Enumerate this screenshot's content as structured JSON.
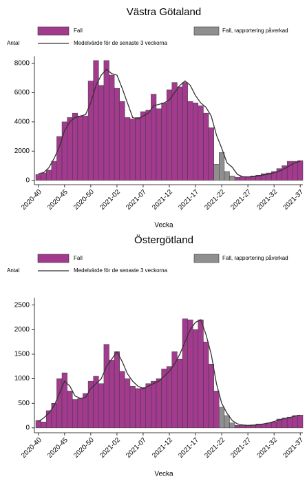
{
  "chart_data": [
    {
      "type": "bar",
      "title": "Västra Götaland",
      "y_label": "Antal",
      "x_label": "Vecka",
      "categories": [
        "2020-40",
        null,
        null,
        null,
        null,
        "2020-45",
        null,
        null,
        null,
        null,
        "2020-50",
        null,
        null,
        null,
        null,
        "2021-02",
        null,
        null,
        null,
        null,
        "2021-07",
        null,
        null,
        null,
        null,
        "2021-12",
        null,
        null,
        null,
        null,
        "2021-17",
        null,
        null,
        null,
        null,
        "2021-22",
        null,
        null,
        null,
        null,
        "2021-27",
        null,
        null,
        null,
        null,
        "2021-32",
        null,
        null,
        null,
        null,
        "2021-37"
      ],
      "series": [
        {
          "name": "Fall",
          "type": "bar",
          "color": "#a23a8e",
          "values": [
            400,
            500,
            700,
            1300,
            3000,
            4000,
            4300,
            4600,
            4400,
            4400,
            6800,
            8200,
            6500,
            8200,
            7200,
            6300,
            5400,
            4300,
            4200,
            4300,
            4700,
            4800,
            5900,
            4900,
            5300,
            6200,
            6700,
            6400,
            6700,
            5400,
            5300,
            5100,
            4600,
            3600,
            null,
            null,
            null,
            null,
            200,
            250,
            250,
            300,
            350,
            450,
            500,
            600,
            800,
            1000,
            1300,
            1300,
            1350
          ]
        },
        {
          "name": "Fall, rapportering påverkad",
          "type": "bar",
          "color": "#8f8f8f",
          "values": [
            null,
            null,
            null,
            null,
            null,
            null,
            null,
            null,
            null,
            null,
            null,
            null,
            null,
            null,
            null,
            null,
            null,
            null,
            null,
            null,
            null,
            null,
            null,
            null,
            null,
            null,
            null,
            null,
            null,
            null,
            null,
            null,
            null,
            null,
            1100,
            1900,
            600,
            300,
            null,
            null,
            null,
            null,
            null,
            null,
            null,
            null,
            null,
            null,
            null,
            null,
            null
          ]
        },
        {
          "name": "Medelvärde för de senaste 3 veckorna",
          "type": "line",
          "color": "#333333",
          "values": [
            450,
            530,
            870,
            1500,
            2300,
            3400,
            4000,
            4300,
            4400,
            4500,
            5300,
            6500,
            7200,
            7600,
            7300,
            7200,
            6300,
            5300,
            4300,
            4200,
            4400,
            4600,
            5100,
            5200,
            5300,
            5500,
            6000,
            6500,
            6800,
            6500,
            5800,
            5300,
            5000,
            4400,
            3100,
            2200,
            1200,
            900,
            400,
            250,
            230,
            260,
            300,
            370,
            430,
            520,
            630,
            800,
            1000,
            1200,
            1300
          ]
        }
      ],
      "ylim": [
        -300,
        8500
      ],
      "yticks": [
        0,
        2000,
        4000,
        6000,
        8000
      ]
    },
    {
      "type": "bar",
      "title": "Östergötland",
      "y_label": "Antal",
      "x_label": "Vecka",
      "categories": [
        "2020-40",
        null,
        null,
        null,
        null,
        "2020-45",
        null,
        null,
        null,
        null,
        "2020-50",
        null,
        null,
        null,
        null,
        "2021-02",
        null,
        null,
        null,
        null,
        "2021-07",
        null,
        null,
        null,
        null,
        "2021-12",
        null,
        null,
        null,
        null,
        "2021-17",
        null,
        null,
        null,
        null,
        "2021-22",
        null,
        null,
        null,
        null,
        "2021-27",
        null,
        null,
        null,
        null,
        "2021-32",
        null,
        null,
        null,
        null,
        "2021-37"
      ],
      "series": [
        {
          "name": "Fall",
          "type": "bar",
          "color": "#a23a8e",
          "values": [
            150,
            120,
            350,
            500,
            1000,
            1120,
            750,
            580,
            600,
            700,
            950,
            1050,
            900,
            1700,
            1380,
            1550,
            1150,
            1000,
            850,
            800,
            820,
            900,
            950,
            1000,
            1200,
            1250,
            1550,
            1400,
            2220,
            2200,
            2000,
            2200,
            1750,
            1300,
            750,
            null,
            null,
            null,
            50,
            50,
            50,
            60,
            80,
            80,
            100,
            120,
            180,
            200,
            220,
            250,
            260
          ]
        },
        {
          "name": "Fall, rapportering påverkad",
          "type": "bar",
          "color": "#8f8f8f",
          "values": [
            null,
            null,
            null,
            null,
            null,
            null,
            null,
            null,
            null,
            null,
            null,
            null,
            null,
            null,
            null,
            null,
            null,
            null,
            null,
            null,
            null,
            null,
            null,
            null,
            null,
            null,
            null,
            null,
            null,
            null,
            null,
            null,
            null,
            null,
            null,
            420,
            250,
            100,
            null,
            null,
            null,
            null,
            null,
            null,
            null,
            null,
            null,
            null,
            null,
            null,
            null
          ]
        },
        {
          "name": "Medelvärde för de senaste 3 veckorna",
          "type": "line",
          "color": "#333333",
          "values": [
            130,
            200,
            300,
            450,
            700,
            950,
            850,
            650,
            600,
            620,
            800,
            900,
            1000,
            1250,
            1400,
            1550,
            1350,
            1100,
            950,
            850,
            800,
            850,
            900,
            950,
            1050,
            1150,
            1300,
            1500,
            1750,
            2000,
            2150,
            2200,
            1900,
            1500,
            900,
            500,
            300,
            150,
            80,
            60,
            50,
            55,
            60,
            80,
            100,
            130,
            160,
            190,
            210,
            240,
            260
          ]
        }
      ],
      "ylim": [
        -100,
        2650
      ],
      "yticks": [
        0,
        500,
        1000,
        1500,
        2000,
        2500
      ]
    }
  ]
}
